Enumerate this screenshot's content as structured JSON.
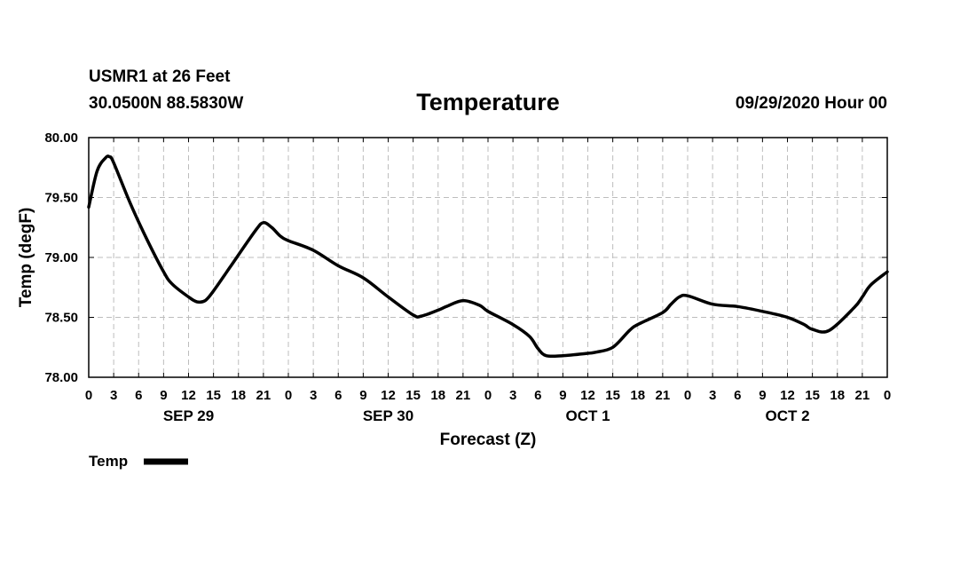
{
  "header": {
    "station": "USMR1 at 26 Feet",
    "coords": "30.0500N 88.5830W",
    "title": "Temperature",
    "timestamp": "09/29/2020 Hour 00"
  },
  "colors": {
    "line": "#000000",
    "grid": "#bdbdbd",
    "frame": "#000000"
  },
  "chart_data": {
    "type": "line",
    "title": "Temperature",
    "xlabel": "Forecast (Z)",
    "ylabel": "Temp (degF)",
    "ylim": [
      78.0,
      80.0
    ],
    "xlim": [
      0,
      96
    ],
    "yticks": [
      "78.00",
      "78.50",
      "79.00",
      "79.50",
      "80.00"
    ],
    "xtick_labels": [
      "0",
      "3",
      "6",
      "9",
      "12",
      "15",
      "18",
      "21",
      "0",
      "3",
      "6",
      "9",
      "12",
      "15",
      "18",
      "21",
      "0",
      "3",
      "6",
      "9",
      "12",
      "15",
      "18",
      "21",
      "0",
      "3",
      "6",
      "9",
      "12",
      "15",
      "18",
      "21",
      "0"
    ],
    "day_labels": [
      {
        "label": "SEP 29",
        "hour": 12
      },
      {
        "label": "SEP 30",
        "hour": 36
      },
      {
        "label": "OCT 1",
        "hour": 60
      },
      {
        "label": "OCT 2",
        "hour": 84
      }
    ],
    "grid": true,
    "legend": {
      "position": "bottom-left",
      "label": "Temp"
    },
    "series": [
      {
        "name": "Temp",
        "x": [
          0,
          1,
          2,
          2.5,
          3,
          5,
          7,
          9,
          10,
          12,
          13,
          14,
          15,
          17,
          20,
          21,
          22,
          23,
          24,
          27,
          30,
          33,
          36,
          39,
          40,
          42,
          43,
          45,
          47,
          48,
          51,
          53,
          54,
          55,
          57,
          60,
          61,
          63,
          65,
          66,
          69,
          70,
          71,
          72,
          75,
          78,
          81,
          84,
          86,
          87,
          89,
          92,
          93,
          94,
          96
        ],
        "y": [
          79.42,
          79.72,
          79.83,
          79.84,
          79.79,
          79.45,
          79.15,
          78.88,
          78.78,
          78.67,
          78.63,
          78.64,
          78.72,
          78.92,
          79.22,
          79.29,
          79.25,
          79.18,
          79.14,
          79.06,
          78.93,
          78.83,
          78.67,
          78.52,
          78.51,
          78.56,
          78.59,
          78.64,
          78.6,
          78.55,
          78.44,
          78.34,
          78.24,
          78.18,
          78.18,
          78.2,
          78.21,
          78.25,
          78.39,
          78.44,
          78.54,
          78.61,
          78.67,
          78.68,
          78.61,
          78.59,
          78.55,
          78.5,
          78.44,
          78.4,
          78.39,
          78.58,
          78.67,
          78.77,
          78.88
        ]
      }
    ]
  }
}
